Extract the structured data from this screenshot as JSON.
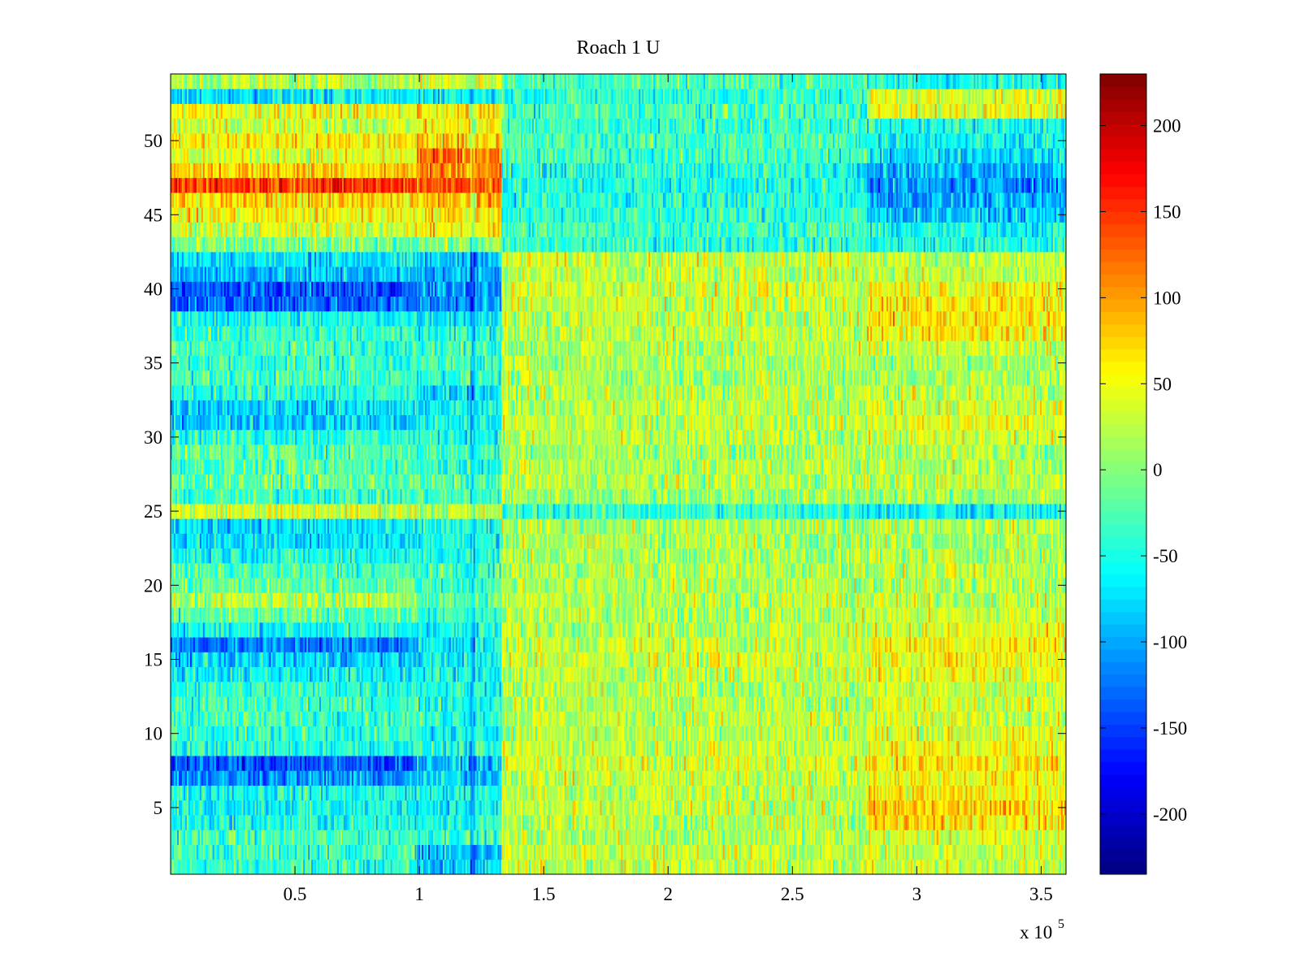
{
  "chart_data": {
    "type": "heatmap",
    "title": "Roach 1 U",
    "xlabel": "",
    "ylabel": "",
    "x_multiplier_label": "x 10",
    "x_multiplier_exponent": "5",
    "xlim": [
      0,
      3.6
    ],
    "ylim": [
      0.5,
      54.5
    ],
    "x_ticks": [
      {
        "value": 0.5,
        "label": "0.5"
      },
      {
        "value": 1,
        "label": "1"
      },
      {
        "value": 1.5,
        "label": "1.5"
      },
      {
        "value": 2,
        "label": "2"
      },
      {
        "value": 2.5,
        "label": "2.5"
      },
      {
        "value": 3,
        "label": "3"
      },
      {
        "value": 3.5,
        "label": "3.5"
      }
    ],
    "y_ticks": [
      {
        "value": 5,
        "label": "5"
      },
      {
        "value": 10,
        "label": "10"
      },
      {
        "value": 15,
        "label": "15"
      },
      {
        "value": 20,
        "label": "20"
      },
      {
        "value": 25,
        "label": "25"
      },
      {
        "value": 30,
        "label": "30"
      },
      {
        "value": 35,
        "label": "35"
      },
      {
        "value": 40,
        "label": "40"
      },
      {
        "value": 45,
        "label": "45"
      },
      {
        "value": 50,
        "label": "50"
      }
    ],
    "colorbar": {
      "colormap": "jet",
      "clim": [
        -235,
        230
      ],
      "ticks": [
        {
          "value": 200,
          "label": "200"
        },
        {
          "value": 150,
          "label": "150"
        },
        {
          "value": 100,
          "label": "100"
        },
        {
          "value": 50,
          "label": "50"
        },
        {
          "value": 0,
          "label": "0"
        },
        {
          "value": -50,
          "label": "-50"
        },
        {
          "value": -100,
          "label": "-100"
        },
        {
          "value": -150,
          "label": "-150"
        },
        {
          "value": -200,
          "label": "-200"
        }
      ]
    },
    "x_segments": [
      0,
      0.99,
      1.33,
      2.8,
      3.6
    ],
    "row_means": [
      {
        "row": 1,
        "values": [
          -40,
          -85,
          30,
          30
        ]
      },
      {
        "row": 2,
        "values": [
          -35,
          -90,
          25,
          30
        ]
      },
      {
        "row": 3,
        "values": [
          -30,
          -30,
          20,
          35
        ]
      },
      {
        "row": 4,
        "values": [
          -50,
          -40,
          20,
          70
        ]
      },
      {
        "row": 5,
        "values": [
          -55,
          -60,
          25,
          75
        ]
      },
      {
        "row": 6,
        "values": [
          -50,
          -55,
          25,
          60
        ]
      },
      {
        "row": 7,
        "values": [
          -110,
          -80,
          30,
          55
        ]
      },
      {
        "row": 8,
        "values": [
          -140,
          -90,
          35,
          65
        ]
      },
      {
        "row": 9,
        "values": [
          -45,
          -50,
          30,
          50
        ]
      },
      {
        "row": 10,
        "values": [
          -40,
          -60,
          25,
          40
        ]
      },
      {
        "row": 11,
        "values": [
          -30,
          -40,
          25,
          30
        ]
      },
      {
        "row": 12,
        "values": [
          -35,
          -45,
          20,
          35
        ]
      },
      {
        "row": 13,
        "values": [
          -40,
          -45,
          20,
          30
        ]
      },
      {
        "row": 14,
        "values": [
          -60,
          -55,
          25,
          45
        ]
      },
      {
        "row": 15,
        "values": [
          -80,
          -60,
          35,
          55
        ]
      },
      {
        "row": 16,
        "values": [
          -120,
          -60,
          30,
          60
        ]
      },
      {
        "row": 17,
        "values": [
          -55,
          -55,
          25,
          40
        ]
      },
      {
        "row": 18,
        "values": [
          -20,
          -40,
          20,
          30
        ]
      },
      {
        "row": 19,
        "values": [
          20,
          -20,
          25,
          25
        ]
      },
      {
        "row": 20,
        "values": [
          -15,
          -30,
          20,
          20
        ]
      },
      {
        "row": 21,
        "values": [
          -30,
          -35,
          20,
          25
        ]
      },
      {
        "row": 22,
        "values": [
          -50,
          -45,
          15,
          20
        ]
      },
      {
        "row": 23,
        "values": [
          -70,
          -50,
          20,
          15
        ]
      },
      {
        "row": 24,
        "values": [
          -75,
          -50,
          15,
          25
        ]
      },
      {
        "row": 25,
        "values": [
          35,
          25,
          -40,
          -60
        ]
      },
      {
        "row": 26,
        "values": [
          -35,
          -30,
          10,
          10
        ]
      },
      {
        "row": 27,
        "values": [
          -15,
          -25,
          20,
          25
        ]
      },
      {
        "row": 28,
        "values": [
          -25,
          -35,
          20,
          20
        ]
      },
      {
        "row": 29,
        "values": [
          -20,
          -30,
          15,
          20
        ]
      },
      {
        "row": 30,
        "values": [
          -40,
          -45,
          20,
          30
        ]
      },
      {
        "row": 31,
        "values": [
          -80,
          -55,
          25,
          45
        ]
      },
      {
        "row": 32,
        "values": [
          -75,
          -60,
          25,
          35
        ]
      },
      {
        "row": 33,
        "values": [
          -45,
          -70,
          20,
          25
        ]
      },
      {
        "row": 34,
        "values": [
          -30,
          -35,
          15,
          15
        ]
      },
      {
        "row": 35,
        "values": [
          -35,
          -35,
          20,
          15
        ]
      },
      {
        "row": 36,
        "values": [
          -30,
          -30,
          20,
          25
        ]
      },
      {
        "row": 37,
        "values": [
          -40,
          -40,
          25,
          60
        ]
      },
      {
        "row": 38,
        "values": [
          -55,
          -60,
          25,
          65
        ]
      },
      {
        "row": 39,
        "values": [
          -130,
          -110,
          30,
          60
        ]
      },
      {
        "row": 40,
        "values": [
          -140,
          -110,
          35,
          55
        ]
      },
      {
        "row": 41,
        "values": [
          -90,
          -95,
          25,
          30
        ]
      },
      {
        "row": 42,
        "values": [
          -70,
          -85,
          35,
          25
        ]
      },
      {
        "row": 43,
        "values": [
          -10,
          0,
          -40,
          -50
        ]
      },
      {
        "row": 44,
        "values": [
          35,
          60,
          -30,
          -55
        ]
      },
      {
        "row": 45,
        "values": [
          55,
          65,
          -40,
          -85
        ]
      },
      {
        "row": 46,
        "values": [
          70,
          80,
          -45,
          -100
        ]
      },
      {
        "row": 47,
        "values": [
          150,
          140,
          -50,
          -110
        ]
      },
      {
        "row": 48,
        "values": [
          80,
          110,
          -45,
          -90
        ]
      },
      {
        "row": 49,
        "values": [
          40,
          115,
          -35,
          -70
        ]
      },
      {
        "row": 50,
        "values": [
          60,
          80,
          -30,
          -55
        ]
      },
      {
        "row": 51,
        "values": [
          30,
          55,
          -35,
          -50
        ]
      },
      {
        "row": 52,
        "values": [
          50,
          60,
          -30,
          45
        ]
      },
      {
        "row": 53,
        "values": [
          -70,
          -55,
          -40,
          40
        ]
      },
      {
        "row": 54,
        "values": [
          20,
          40,
          -25,
          -55
        ]
      }
    ]
  }
}
